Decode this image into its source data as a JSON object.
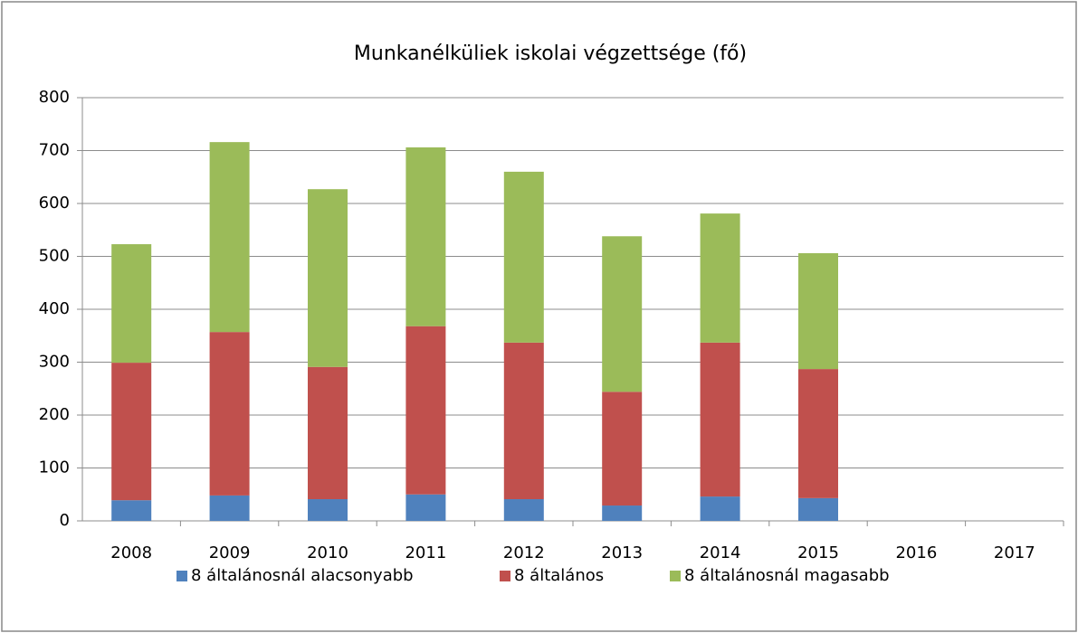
{
  "chart_data": {
    "type": "stacked_bar",
    "title": "Munkanélküliek iskolai végzettsége (fő)",
    "categories": [
      "2008",
      "2009",
      "2010",
      "2011",
      "2012",
      "2013",
      "2014",
      "2015",
      "2016",
      "2017"
    ],
    "series": [
      {
        "name": "8 általánosnál alacsonyabb",
        "color": "#4f81bd",
        "values": [
          39,
          48,
          41,
          50,
          41,
          29,
          46,
          43,
          null,
          null
        ]
      },
      {
        "name": "8 általános",
        "color": "#c0504d",
        "values": [
          260,
          309,
          250,
          318,
          296,
          215,
          291,
          244,
          null,
          null
        ]
      },
      {
        "name": "8 általánosnál magasabb",
        "color": "#9bbb59",
        "values": [
          224,
          359,
          336,
          338,
          323,
          294,
          244,
          219,
          null,
          null
        ]
      }
    ],
    "ylim": [
      0,
      800
    ],
    "yticks": [
      0,
      100,
      200,
      300,
      400,
      500,
      600,
      700,
      800
    ],
    "grid": true,
    "legend": "bottom"
  }
}
